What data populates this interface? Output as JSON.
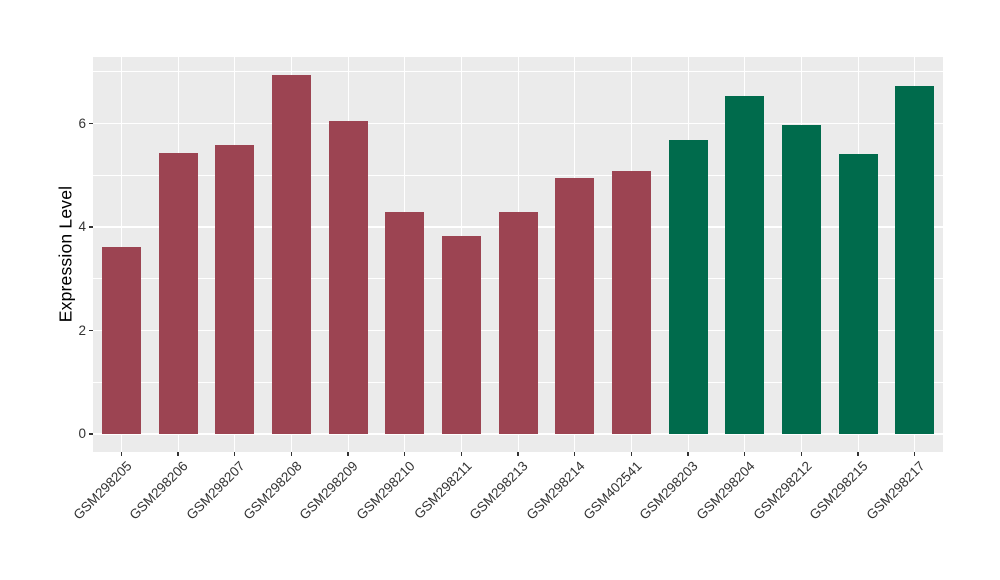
{
  "chart_data": {
    "type": "bar",
    "title": "",
    "xlabel": "",
    "ylabel": "Expression Level",
    "categories": [
      "GSM298205",
      "GSM298206",
      "GSM298207",
      "GSM298208",
      "GSM298209",
      "GSM298210",
      "GSM298211",
      "GSM298213",
      "GSM298214",
      "GSM402541",
      "GSM298203",
      "GSM298204",
      "GSM298212",
      "GSM298215",
      "GSM298217"
    ],
    "values": [
      3.62,
      5.43,
      5.58,
      6.94,
      6.05,
      4.29,
      3.82,
      4.29,
      4.94,
      5.08,
      5.68,
      6.53,
      5.97,
      5.42,
      6.73
    ],
    "groups": [
      "group1",
      "group1",
      "group1",
      "group1",
      "group1",
      "group1",
      "group1",
      "group1",
      "group1",
      "group1",
      "group2",
      "group2",
      "group2",
      "group2",
      "group2"
    ],
    "group_colors": {
      "group1": "#9C4452",
      "group2": "#006B4C"
    },
    "ylim": [
      0,
      7.29
    ],
    "yticks": [
      0,
      2,
      4,
      6
    ],
    "ytick_labels": [
      "0",
      "2",
      "4",
      "6"
    ],
    "minor_ticks": [
      1,
      3,
      5,
      7
    ],
    "grid": true,
    "legend_position": "none",
    "panel_background": "#EBEBEB",
    "gridline_color": "#FFFFFF",
    "axis_text_color": "#333333",
    "axis_title_color": "#000000",
    "x_label_rotation_deg": 45
  }
}
